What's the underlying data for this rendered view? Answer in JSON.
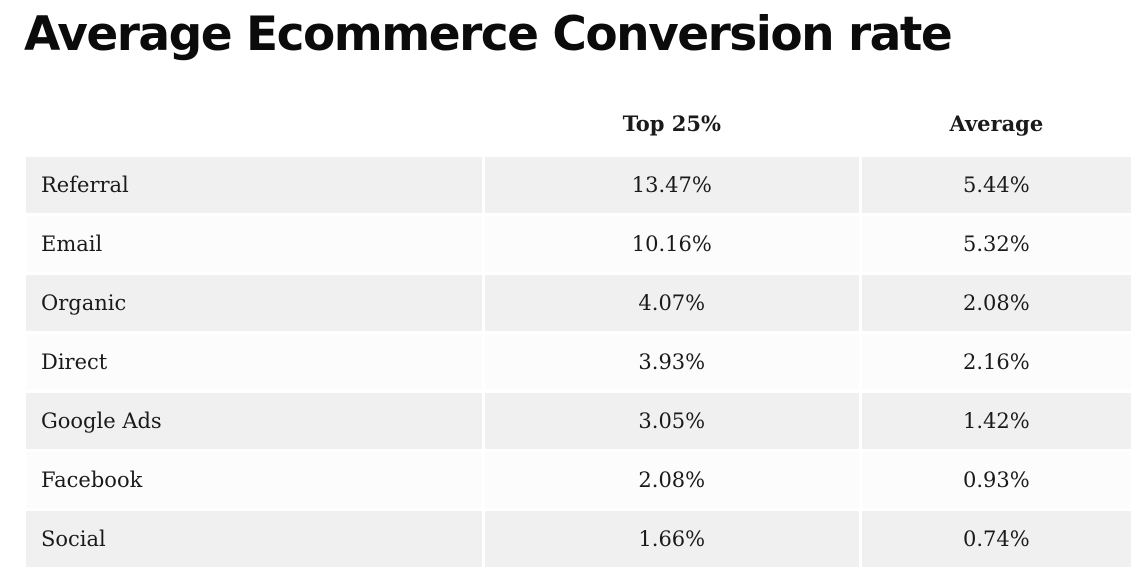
{
  "chart_data": {
    "type": "table",
    "title": "Average Ecommerce Conversion rate",
    "columns": [
      "",
      "Top 25%",
      "Average"
    ],
    "rows": [
      {
        "channel": "Referral",
        "top25": "13.47%",
        "average": "5.44%"
      },
      {
        "channel": "Email",
        "top25": "10.16%",
        "average": "5.32%"
      },
      {
        "channel": "Organic",
        "top25": "4.07%",
        "average": "2.08%"
      },
      {
        "channel": "Direct",
        "top25": "3.93%",
        "average": "2.16%"
      },
      {
        "channel": "Google Ads",
        "top25": "3.05%",
        "average": "1.42%"
      },
      {
        "channel": "Facebook",
        "top25": "2.08%",
        "average": "0.93%"
      },
      {
        "channel": "Social",
        "top25": "1.66%",
        "average": "0.74%"
      }
    ]
  },
  "colors": {
    "row_shaded": "#f0f0f0",
    "row_plain": "#fcfcfc",
    "title_text": "#0b0b0b"
  }
}
